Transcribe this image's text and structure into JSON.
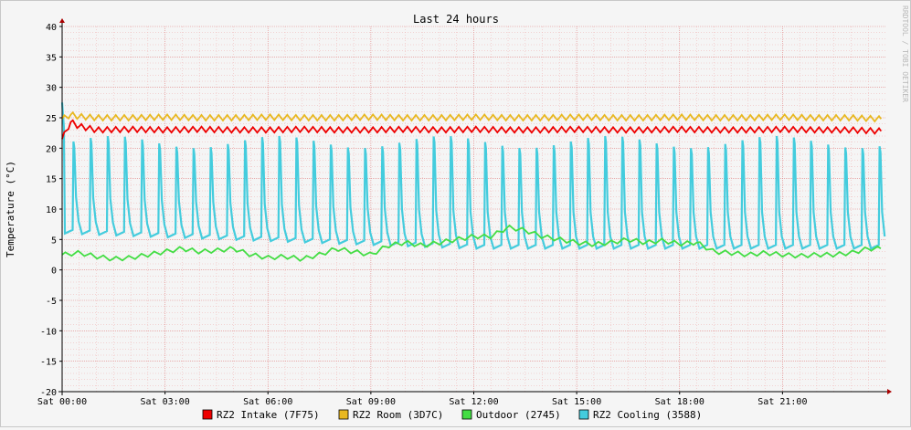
{
  "chart_data": {
    "type": "line",
    "title": "Last 24 hours",
    "ylabel": "Temperature (°C)",
    "xlabel": "",
    "watermark": "RRDTOOL / TOBI OETIKER",
    "ylim": [
      -20,
      40
    ],
    "yticks": [
      40,
      35,
      30,
      25,
      20,
      15,
      10,
      5,
      0,
      -5,
      -10,
      -15,
      -20
    ],
    "xlim": [
      "Sat 00:00",
      "Sun 00:00"
    ],
    "xticks": [
      "Sat 00:00",
      "Sat 03:00",
      "Sat 06:00",
      "Sat 09:00",
      "Sat 12:00",
      "Sat 15:00",
      "Sat 18:00",
      "Sat 21:00"
    ],
    "grid": true,
    "legend_position": "bottom",
    "series": [
      {
        "name": "RZ2 Intake (7F75)",
        "color": "#ee0000",
        "x": [
          0,
          0.25,
          0.5,
          1,
          2,
          3,
          4,
          5,
          6,
          7,
          8,
          9,
          10,
          11,
          12,
          13,
          14,
          15,
          16,
          17,
          18,
          19,
          20,
          21,
          22,
          23,
          23.9
        ],
        "y": [
          21.5,
          24.3,
          23.6,
          23.0,
          23.1,
          23.0,
          23.1,
          23.0,
          23.0,
          23.1,
          23.0,
          23.0,
          23.1,
          23.0,
          23.1,
          23.0,
          23.0,
          23.1,
          23.0,
          23.0,
          23.1,
          23.0,
          23.0,
          23.1,
          23.0,
          23.0,
          22.8
        ]
      },
      {
        "name": "RZ2 Room (3D7C)",
        "color": "#e8b820",
        "x": [
          0,
          0.25,
          0.5,
          1,
          2,
          3,
          4,
          5,
          6,
          7,
          8,
          9,
          10,
          11,
          12,
          13,
          14,
          15,
          16,
          17,
          18,
          19,
          20,
          21,
          22,
          23,
          23.9
        ],
        "y": [
          24.8,
          25.5,
          25.2,
          25.0,
          25.0,
          25.1,
          25.0,
          25.0,
          25.1,
          25.0,
          25.0,
          25.1,
          25.0,
          25.0,
          25.1,
          25.0,
          25.0,
          25.1,
          25.0,
          25.0,
          25.1,
          25.0,
          25.0,
          25.1,
          25.0,
          25.0,
          24.8
        ]
      },
      {
        "name": "Outdoor (2745)",
        "color": "#44dd44",
        "x": [
          0,
          0.5,
          1,
          1.5,
          2,
          2.5,
          3,
          3.5,
          4,
          4.5,
          5,
          5.5,
          6,
          6.5,
          7,
          7.5,
          8,
          8.5,
          9,
          9.5,
          10,
          10.5,
          11,
          11.5,
          12,
          12.5,
          13,
          13.5,
          14,
          14.5,
          15,
          15.5,
          16,
          16.5,
          17,
          17.5,
          18,
          18.5,
          19,
          19.5,
          20,
          20.5,
          21,
          21.5,
          22,
          22.5,
          23,
          23.5,
          23.9
        ],
        "y": [
          2.5,
          2.8,
          2.2,
          1.8,
          2.0,
          2.5,
          3.0,
          3.5,
          3.0,
          3.2,
          3.5,
          2.5,
          2.0,
          2.2,
          1.8,
          2.5,
          3.5,
          3.0,
          2.5,
          4.0,
          4.5,
          4.0,
          4.5,
          5.0,
          5.5,
          5.5,
          7.0,
          6.5,
          5.5,
          5.0,
          4.5,
          4.2,
          4.5,
          5.0,
          4.5,
          4.8,
          4.3,
          4.5,
          3.0,
          2.8,
          2.5,
          2.8,
          2.5,
          2.3,
          2.5,
          2.5,
          2.8,
          3.5,
          3.5
        ]
      },
      {
        "name": "RZ2 Cooling (3588)",
        "color": "#44ccdd",
        "cycle_period_hours": 0.5,
        "baseline": [
          6.0,
          3.5
        ],
        "peak": [
          20.0,
          22.0
        ],
        "start_max": 27.5
      }
    ]
  }
}
